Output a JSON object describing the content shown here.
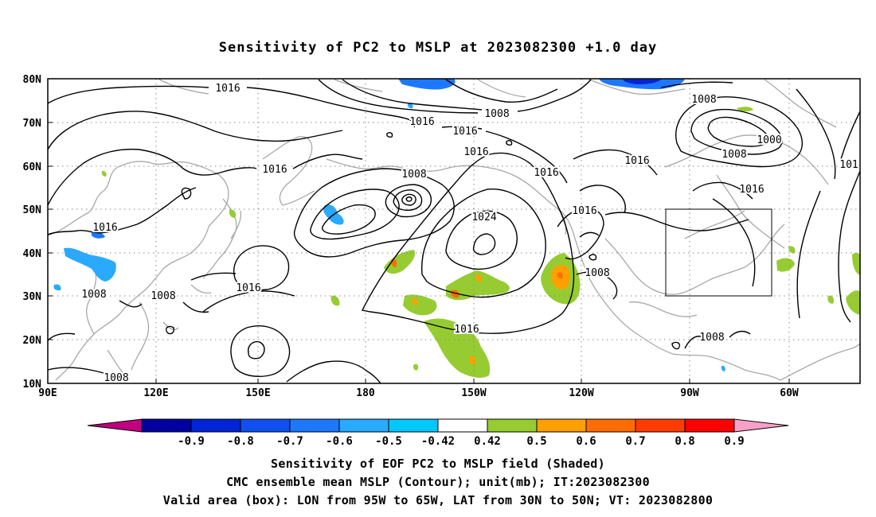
{
  "title": "Sensitivity of PC2 to MSLP at 2023082300 +1.0 day",
  "lat_labels": [
    "80N",
    "70N",
    "60N",
    "50N",
    "40N",
    "30N",
    "20N",
    "10N"
  ],
  "lon_labels": [
    "90E",
    "120E",
    "150E",
    "180",
    "150W",
    "120W",
    "90W",
    "60W"
  ],
  "colorbar": {
    "ticks": [
      "-0.9",
      "-0.8",
      "-0.7",
      "-0.6",
      "-0.5",
      "-0.42",
      "0.42",
      "0.5",
      "0.6",
      "0.7",
      "0.8",
      "0.9"
    ],
    "colors": [
      "#c0007e",
      "#0000a0",
      "#0024d6",
      "#1050f0",
      "#1e78ff",
      "#2aaaff",
      "#00c8ff",
      "#ffffff",
      "#96cc32",
      "#ffa000",
      "#ff6c00",
      "#ff3c00",
      "#ff0000",
      "#f8a0c8"
    ]
  },
  "contour_labels": [
    {
      "text": "1016"
    },
    {
      "text": "1008"
    },
    {
      "text": "1016"
    },
    {
      "text": "1016"
    },
    {
      "text": "1016"
    },
    {
      "text": "1016"
    },
    {
      "text": "1008"
    },
    {
      "text": "1016"
    },
    {
      "text": "1016"
    },
    {
      "text": "1024"
    },
    {
      "text": "1016"
    },
    {
      "text": "1008"
    },
    {
      "text": "1008"
    },
    {
      "text": "1016"
    },
    {
      "text": "1008"
    },
    {
      "text": "1000"
    },
    {
      "text": "1008"
    },
    {
      "text": "1016"
    },
    {
      "text": "1016"
    },
    {
      "text": "1008"
    },
    {
      "text": "1016"
    },
    {
      "text": "101"
    }
  ],
  "valid_box": {
    "lon_from": "95W",
    "lon_to": "65W",
    "lat_from": "30N",
    "lat_to": "50N"
  },
  "captions": {
    "line1": "Sensitivity of EOF PC2 to MSLP field (Shaded)",
    "line2": "CMC ensemble mean MSLP (Contour); unit(mb); IT:2023082300",
    "line3": "Valid area (box): LON from 95W to 65W, LAT from 30N to 50N; VT: 2023082800"
  }
}
